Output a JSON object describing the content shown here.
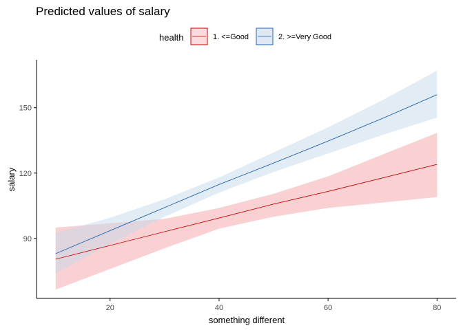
{
  "chart_data": {
    "type": "line",
    "title": "Predicted values of salary",
    "xlabel": "something different",
    "ylabel": "salary",
    "xlim": [
      6.5,
      83.5
    ],
    "ylim": [
      62.5,
      172
    ],
    "xticks": [
      20,
      40,
      60,
      80
    ],
    "yticks": [
      90,
      120,
      150
    ],
    "grid": false,
    "legend": {
      "title": "health",
      "placement": "top"
    },
    "series": [
      {
        "name": "1. <=Good",
        "color": "#cc0000",
        "fill_color": "#f4a3a8",
        "x": [
          10,
          20,
          30,
          40,
          50,
          60,
          70,
          80
        ],
        "y": [
          80.5,
          86.8,
          93.1,
          99.4,
          105.8,
          111.6,
          117.8,
          124.0
        ],
        "ci_low": [
          66.5,
          76.0,
          85.5,
          94.5,
          100.0,
          104.0,
          106.5,
          109.0
        ],
        "ci_high": [
          95.0,
          97.0,
          99.0,
          104.0,
          110.5,
          118.5,
          128.5,
          138.5
        ]
      },
      {
        "name": "2. >=Very Good",
        "color": "#2166ac",
        "fill_color": "#c6d9ec",
        "x": [
          10,
          20,
          30,
          40,
          50,
          60,
          70,
          80
        ],
        "y": [
          83.0,
          93.6,
          104.2,
          114.8,
          124.6,
          134.7,
          145.1,
          156.0
        ],
        "ci_low": [
          74.0,
          87.5,
          100.0,
          111.0,
          120.5,
          129.0,
          137.5,
          145.5
        ],
        "ci_high": [
          92.5,
          99.5,
          108.0,
          118.0,
          129.5,
          141.0,
          153.5,
          167.0
        ]
      }
    ]
  }
}
